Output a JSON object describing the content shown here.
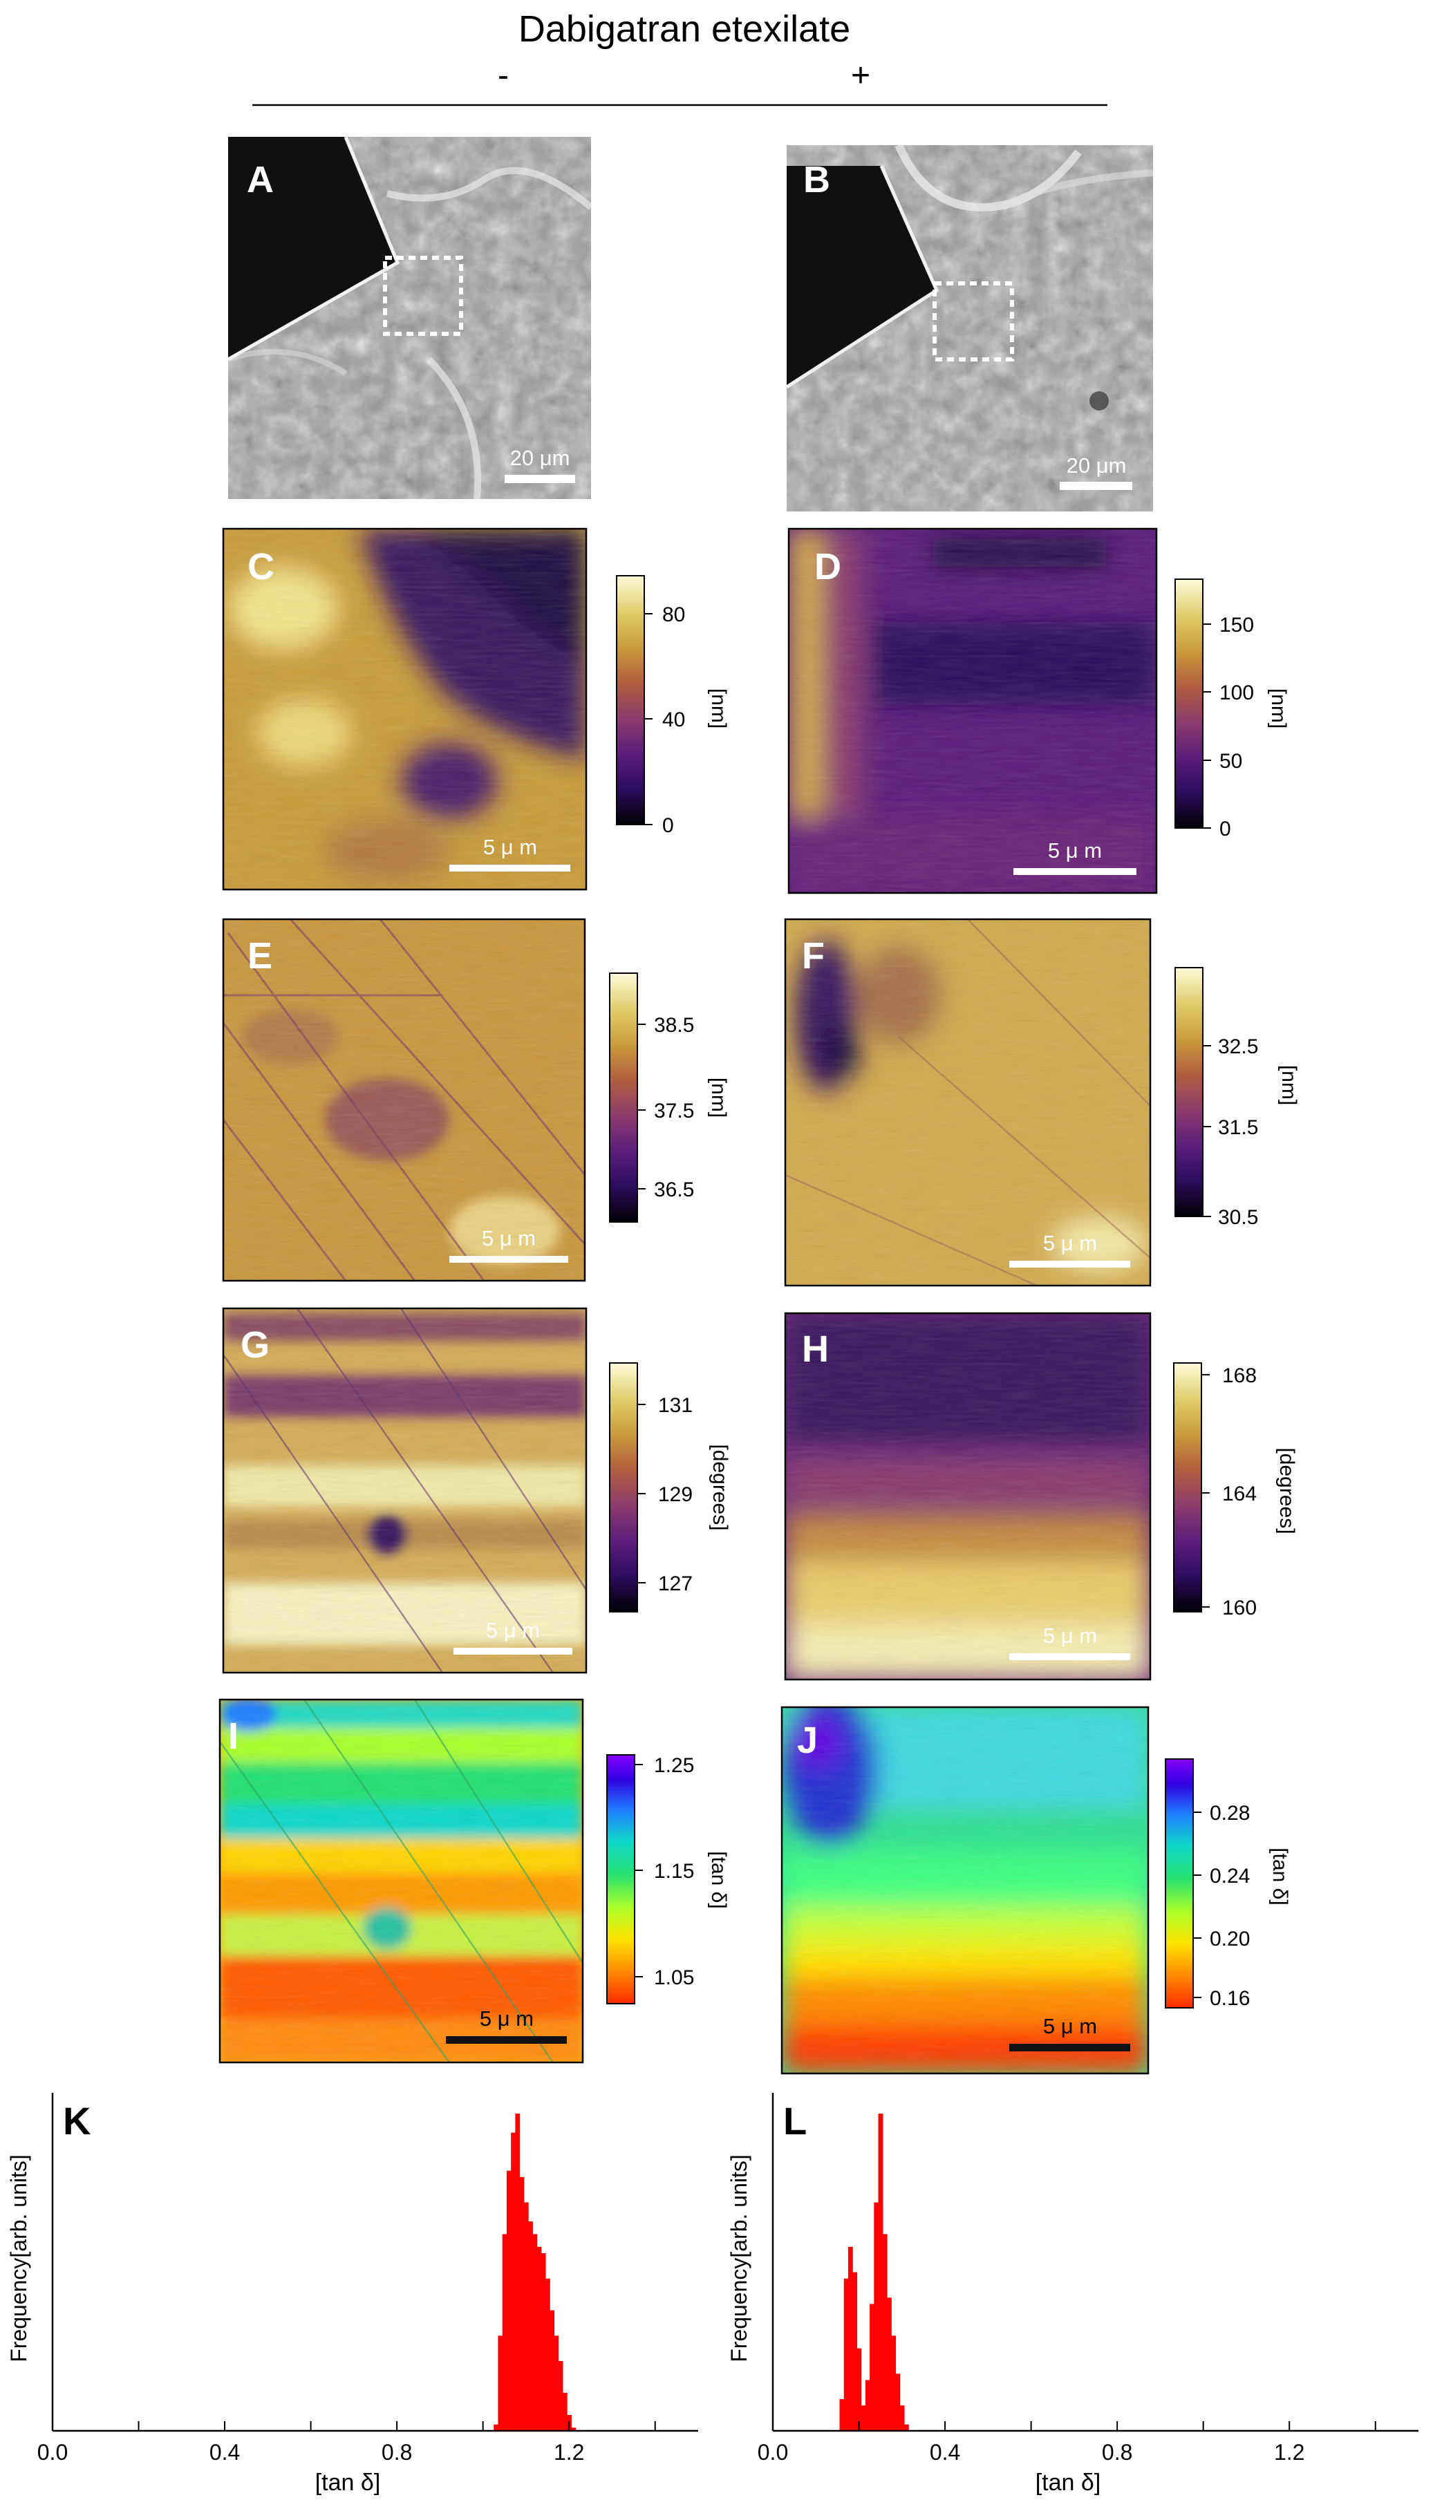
{
  "header": {
    "title": "Dabigatran etexilate",
    "minus": "-",
    "plus": "+"
  },
  "panels": {
    "A": {
      "label": "A",
      "scalebar": "20 μm"
    },
    "B": {
      "label": "B",
      "scalebar": "20 μm"
    },
    "C": {
      "label": "C",
      "scalebar": "5 μ m",
      "cbar_title": "[nm]",
      "ticks": [
        "80",
        "40",
        "0"
      ],
      "range": [
        0,
        95
      ]
    },
    "D": {
      "label": "D",
      "scalebar": "5 μ m",
      "cbar_title": "[nm]",
      "ticks": [
        "150",
        "100",
        "50",
        "0"
      ],
      "range": [
        0,
        185
      ]
    },
    "E": {
      "label": "E",
      "scalebar": "5 μ m",
      "cbar_title": "[nm]",
      "ticks": [
        "38.5",
        "37.5",
        "36.5"
      ],
      "range": [
        36.0,
        39.0
      ]
    },
    "F": {
      "label": "F",
      "scalebar": "5 μ m",
      "cbar_title": "[nm]",
      "ticks": [
        "32.5",
        "31.5",
        "30.5"
      ],
      "range": [
        30.5,
        33.3
      ]
    },
    "G": {
      "label": "G",
      "scalebar": "5 μ m",
      "cbar_title": "[degrees]",
      "ticks": [
        "131",
        "129",
        "127"
      ],
      "range": [
        126.5,
        132.0
      ]
    },
    "H": {
      "label": "H",
      "scalebar": "5 μ m",
      "cbar_title": "[degrees]",
      "ticks": [
        "168",
        "164",
        "160"
      ],
      "range": [
        160,
        168.5
      ]
    },
    "I": {
      "label": "I",
      "scalebar": "5 μ m",
      "cbar_title": "[tan δ]",
      "ticks": [
        "1.25",
        "1.15",
        "1.05"
      ],
      "range": [
        1.01,
        1.28
      ]
    },
    "J": {
      "label": "J",
      "scalebar": "5 μ m",
      "cbar_title": "[tan δ]",
      "ticks": [
        "0.28",
        "0.24",
        "0.20",
        "0.16"
      ],
      "range": [
        0.155,
        0.31
      ]
    }
  },
  "colors": {
    "sequential_map": [
      "#000004",
      "#2c0c5c",
      "#5a1d7a",
      "#8a3a6e",
      "#b25d3f",
      "#c99a3a",
      "#e0cc6a",
      "#fdfcd8"
    ],
    "rainbow_map": [
      "#ff2a00",
      "#ff8a00",
      "#ffe400",
      "#a8ff2a",
      "#25e070",
      "#10d8c8",
      "#1e7dff",
      "#3000e0",
      "#8800ff"
    ],
    "histogram": "#ff0000"
  },
  "chart_data": [
    {
      "type": "bar",
      "panel": "K",
      "label": "K",
      "ylabel": "Frequency[arb. units]",
      "xlabel": "[tan δ]",
      "xlim": [
        0.0,
        1.5
      ],
      "xticks": [
        "0.0",
        "0.4",
        "0.8",
        "1.2"
      ],
      "x": [
        1.03,
        1.04,
        1.05,
        1.06,
        1.07,
        1.08,
        1.09,
        1.1,
        1.11,
        1.12,
        1.13,
        1.14,
        1.15,
        1.16,
        1.17,
        1.18,
        1.19,
        1.2,
        1.21
      ],
      "values": [
        0.02,
        0.3,
        0.62,
        0.82,
        0.94,
        1.0,
        0.8,
        0.72,
        0.66,
        0.62,
        0.58,
        0.56,
        0.48,
        0.38,
        0.3,
        0.22,
        0.12,
        0.05,
        0.01
      ]
    },
    {
      "type": "bar",
      "panel": "L",
      "label": "L",
      "ylabel": "Frequency[arb. units]",
      "xlabel": "[tan δ]",
      "xlim": [
        0.0,
        1.5
      ],
      "xticks": [
        "0.0",
        "0.4",
        "0.8",
        "1.2"
      ],
      "x": [
        0.16,
        0.17,
        0.18,
        0.19,
        0.2,
        0.21,
        0.22,
        0.23,
        0.24,
        0.25,
        0.26,
        0.27,
        0.28,
        0.29,
        0.3,
        0.31
      ],
      "values": [
        0.1,
        0.48,
        0.58,
        0.5,
        0.26,
        0.08,
        0.16,
        0.4,
        0.72,
        1.0,
        0.62,
        0.42,
        0.3,
        0.18,
        0.08,
        0.02
      ]
    }
  ]
}
